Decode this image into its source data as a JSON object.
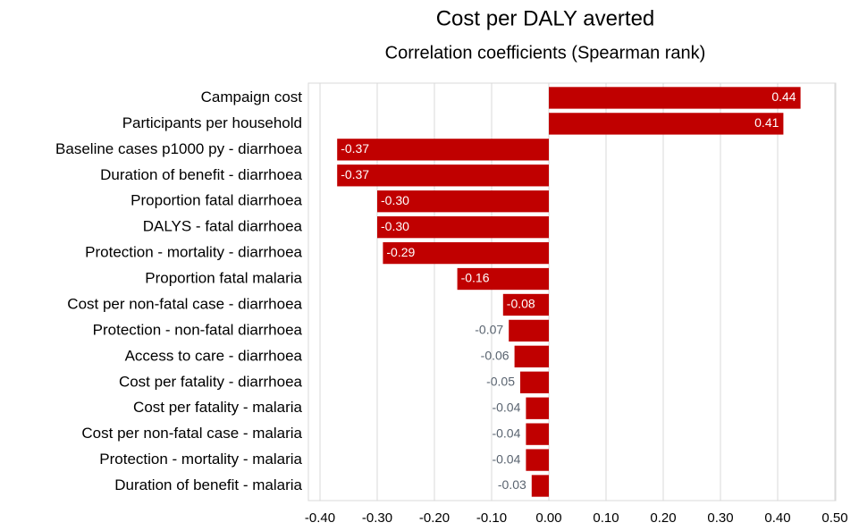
{
  "chart_data": {
    "type": "barh",
    "title": "Cost per DALY averted",
    "subtitle": "Correlation coefficients (Spearman rank)",
    "categories": [
      "Campaign cost",
      "Participants per household",
      "Baseline cases p1000 py - diarrhoea",
      "Duration of benefit - diarrhoea",
      "Proportion fatal diarrhoea",
      "DALYS - fatal diarrhoea",
      "Protection - mortality - diarrhoea",
      "Proportion fatal malaria",
      "Cost per non-fatal case - diarrhoea",
      "Protection - non-fatal diarrhoea",
      "Access to care - diarrhoea",
      "Cost per fatality - diarrhoea",
      "Cost per fatality - malaria",
      "Cost per non-fatal case - malaria",
      "Protection - mortality - malaria",
      "Duration of benefit - malaria"
    ],
    "values": [
      0.44,
      0.41,
      -0.37,
      -0.37,
      -0.3,
      -0.3,
      -0.29,
      -0.16,
      -0.08,
      -0.07,
      -0.06,
      -0.05,
      -0.04,
      -0.04,
      -0.04,
      -0.03
    ],
    "value_labels": [
      "0.44",
      "0.41",
      "-0.37",
      "-0.37",
      "-0.30",
      "-0.30",
      "-0.29",
      "-0.16",
      "-0.08",
      "-0.07",
      "-0.06",
      "-0.05",
      "-0.04",
      "-0.04",
      "-0.04",
      "-0.03"
    ],
    "color": "#c00000",
    "xlim": [
      -0.4,
      0.5
    ],
    "xticks": [
      {
        "value": -0.4,
        "label": "-0.40"
      },
      {
        "value": -0.3,
        "label": "-0.30"
      },
      {
        "value": -0.2,
        "label": "-0.20"
      },
      {
        "value": -0.1,
        "label": "-0.10"
      },
      {
        "value": 0,
        "label": "0.00"
      },
      {
        "value": 0.1,
        "label": "0.10"
      },
      {
        "value": 0.2,
        "label": "0.20"
      },
      {
        "value": 0.3,
        "label": "0.30"
      },
      {
        "value": 0.4,
        "label": "0.40"
      },
      {
        "value": 0.5,
        "label": "0.50"
      }
    ],
    "grid": true
  }
}
